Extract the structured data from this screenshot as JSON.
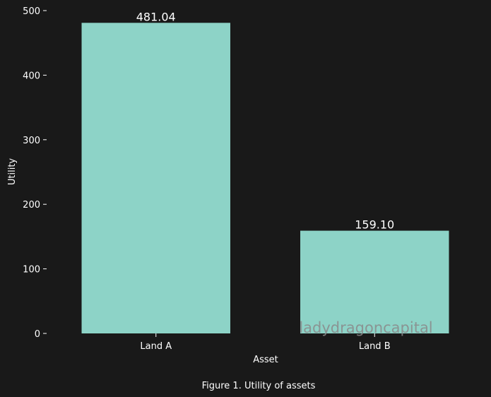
{
  "chart_data": {
    "type": "bar",
    "categories": [
      "Land A",
      "Land B"
    ],
    "values": [
      481.04,
      159.1
    ],
    "value_labels": [
      "481.04",
      "159.10"
    ],
    "xlabel": "Asset",
    "ylabel": "Utility",
    "ylim": [
      0,
      500
    ],
    "yticks": [
      0,
      100,
      200,
      300,
      400,
      500
    ],
    "grid": false,
    "bar_color": "#8dd3c7"
  },
  "caption": "Figure 1. Utility of assets",
  "watermark": "ladydragoncapital",
  "colors": {
    "background": "#191919",
    "text": "#ffffff"
  }
}
